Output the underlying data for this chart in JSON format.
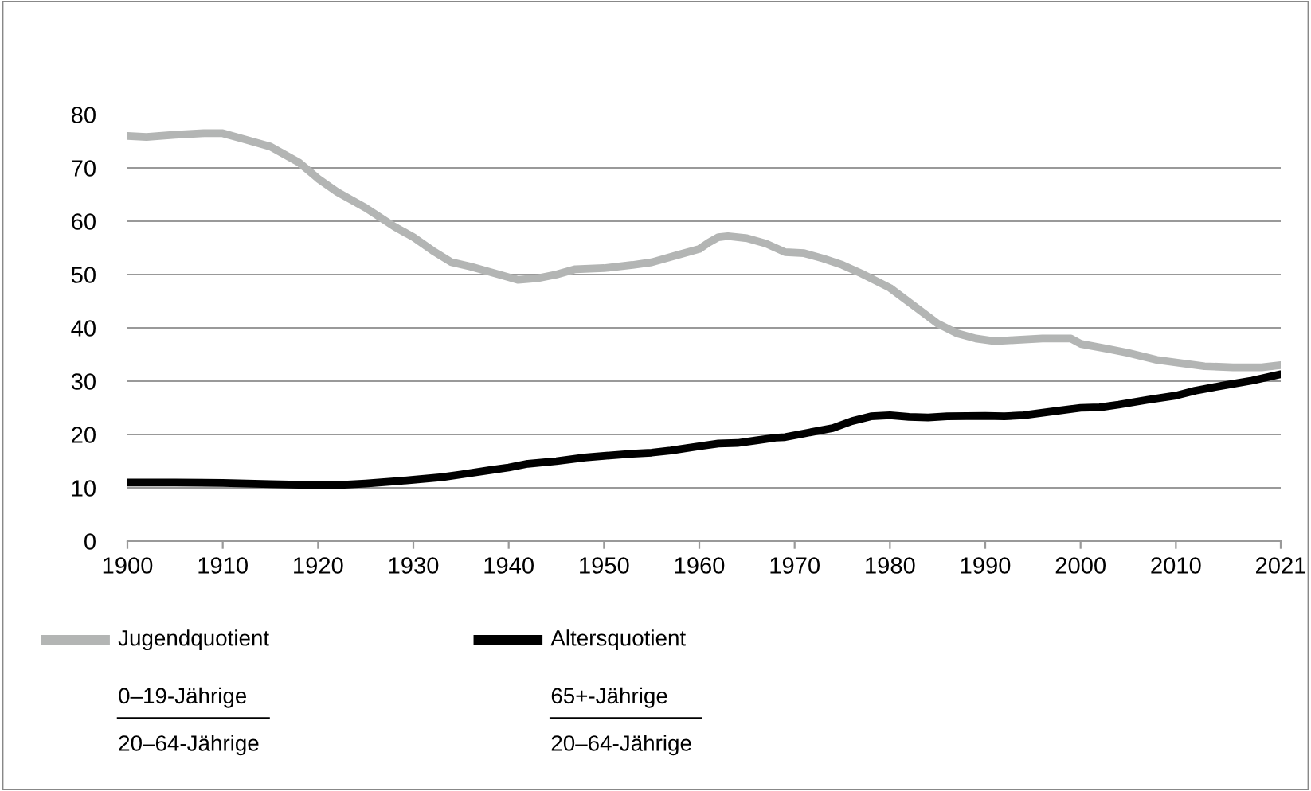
{
  "chart_data": {
    "type": "line",
    "xlim": [
      1900,
      2021
    ],
    "xticks": [
      1900,
      1910,
      1920,
      1930,
      1940,
      1950,
      1960,
      1970,
      1980,
      1990,
      2000,
      2010,
      2021
    ],
    "ylim": [
      0,
      80
    ],
    "yticks": [
      0,
      10,
      20,
      30,
      40,
      50,
      60,
      70,
      80
    ],
    "grid": "y",
    "legend": "bottom",
    "marker": "none",
    "line_style": "solid",
    "annotations": [
      "0–19-Jährige",
      "20–64-Jährige",
      "65+-Jährige",
      "20–64-Jährige"
    ],
    "series": [
      {
        "name": "Jugendquotient",
        "color": "#b3b5b4",
        "x": [
          1900,
          1902,
          1905,
          1908,
          1910,
          1912,
          1915,
          1918,
          1920,
          1922,
          1925,
          1928,
          1930,
          1932,
          1934,
          1936,
          1938,
          1940,
          1941,
          1943,
          1945,
          1947,
          1950,
          1953,
          1955,
          1958,
          1960,
          1961,
          1962,
          1963,
          1965,
          1967,
          1969,
          1971,
          1973,
          1975,
          1977,
          1980,
          1983,
          1985,
          1987,
          1989,
          1991,
          1993,
          1996,
          1999,
          2000,
          2003,
          2005,
          2008,
          2010,
          2013,
          2016,
          2019,
          2021
        ],
        "values": [
          76,
          75.8,
          76.2,
          76.5,
          76.5,
          75.5,
          74,
          71,
          68,
          65.5,
          62.5,
          59,
          57,
          54.5,
          52.3,
          51.5,
          50.5,
          49.5,
          49,
          49.3,
          50,
          51,
          51.2,
          51.8,
          52.3,
          53.8,
          54.8,
          56,
          57,
          57.2,
          56.8,
          55.8,
          54.2,
          54,
          53,
          51.8,
          50.2,
          47.5,
          43.5,
          40.8,
          39,
          38,
          37.5,
          37.7,
          38,
          38,
          37,
          36,
          35.3,
          34,
          33.5,
          32.8,
          32.6,
          32.6,
          33
        ]
      },
      {
        "name": "Altersquotient",
        "color": "#000000",
        "x": [
          1900,
          1905,
          1910,
          1915,
          1920,
          1922,
          1925,
          1928,
          1930,
          1933,
          1935,
          1938,
          1940,
          1942,
          1945,
          1948,
          1950,
          1953,
          1955,
          1957,
          1960,
          1962,
          1964,
          1966,
          1968,
          1969,
          1971,
          1974,
          1976,
          1978,
          1980,
          1982,
          1984,
          1986,
          1990,
          1992,
          1994,
          1997,
          2000,
          2002,
          2004,
          2007,
          2010,
          2012,
          2015,
          2018,
          2021
        ],
        "values": [
          11,
          11,
          10.9,
          10.7,
          10.5,
          10.5,
          10.8,
          11.2,
          11.5,
          12,
          12.5,
          13.3,
          13.8,
          14.5,
          15,
          15.7,
          16,
          16.4,
          16.6,
          17,
          17.8,
          18.3,
          18.4,
          18.9,
          19.4,
          19.5,
          20.2,
          21.2,
          22.5,
          23.4,
          23.6,
          23.3,
          23.2,
          23.4,
          23.5,
          23.4,
          23.6,
          24.3,
          25,
          25.1,
          25.6,
          26.5,
          27.3,
          28.2,
          29.2,
          30.1,
          31.3
        ]
      }
    ]
  }
}
